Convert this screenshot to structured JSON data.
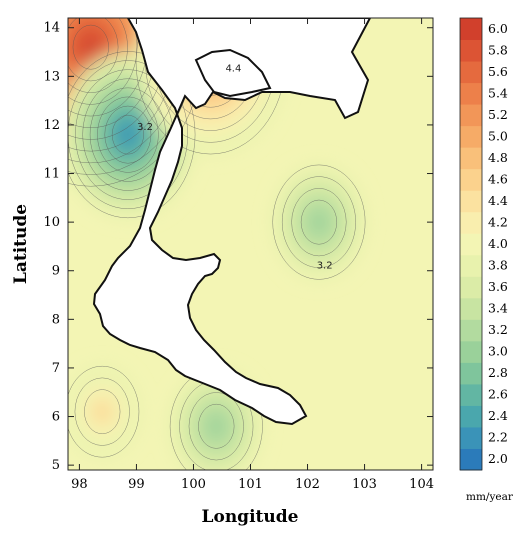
{
  "chart_data": {
    "type": "heatmap",
    "title": "",
    "xlabel": "Longitude",
    "ylabel": "Latitude",
    "xlim": [
      97.8,
      104.2
    ],
    "ylim": [
      4.9,
      14.2
    ],
    "x_ticks": [
      98,
      99,
      100,
      101,
      102,
      103,
      104
    ],
    "y_ticks": [
      5,
      6,
      7,
      8,
      9,
      10,
      11,
      12,
      13,
      14
    ],
    "colorbar": {
      "unit": "mm/year",
      "levels": [
        2.0,
        2.2,
        2.4,
        2.6,
        2.8,
        3.0,
        3.2,
        3.4,
        3.6,
        3.8,
        4.0,
        4.2,
        4.4,
        4.6,
        4.8,
        5.0,
        5.2,
        5.4,
        5.6,
        5.8,
        6.0
      ],
      "colors": [
        "#2b7bba",
        "#3a93b8",
        "#4aa7ad",
        "#62b6a3",
        "#7fc59c",
        "#9ad19a",
        "#b2db9f",
        "#c8e4a2",
        "#dbeca7",
        "#e8f2ad",
        "#f3f5b4",
        "#f9eeae",
        "#fbe2a0",
        "#fbd28d",
        "#f9c07a",
        "#f6ab67",
        "#f29658",
        "#ed804a",
        "#e56a3e",
        "#dc5434",
        "#d1402c"
      ]
    },
    "contour_labels": [
      {
        "text": "4.4",
        "lon": 100.7,
        "lat": 13.1
      },
      {
        "text": "3.2",
        "lon": 102.3,
        "lat": 9.05
      },
      {
        "text": "3.2",
        "lon": 99.15,
        "lat": 11.9
      }
    ],
    "features": [
      {
        "name": "high",
        "value": 6.0,
        "lon": 98.2,
        "lat": 13.6
      },
      {
        "name": "low",
        "value": 2.2,
        "lon": 98.85,
        "lat": 11.8
      },
      {
        "name": "low",
        "value": 3.0,
        "lon": 102.2,
        "lat": 10.0
      },
      {
        "name": "high",
        "value": 5.2,
        "lon": 100.3,
        "lat": 13.3
      },
      {
        "name": "high",
        "value": 4.6,
        "lon": 98.4,
        "lat": 6.1
      },
      {
        "name": "low",
        "value": 3.0,
        "lon": 100.4,
        "lat": 5.8
      }
    ]
  }
}
